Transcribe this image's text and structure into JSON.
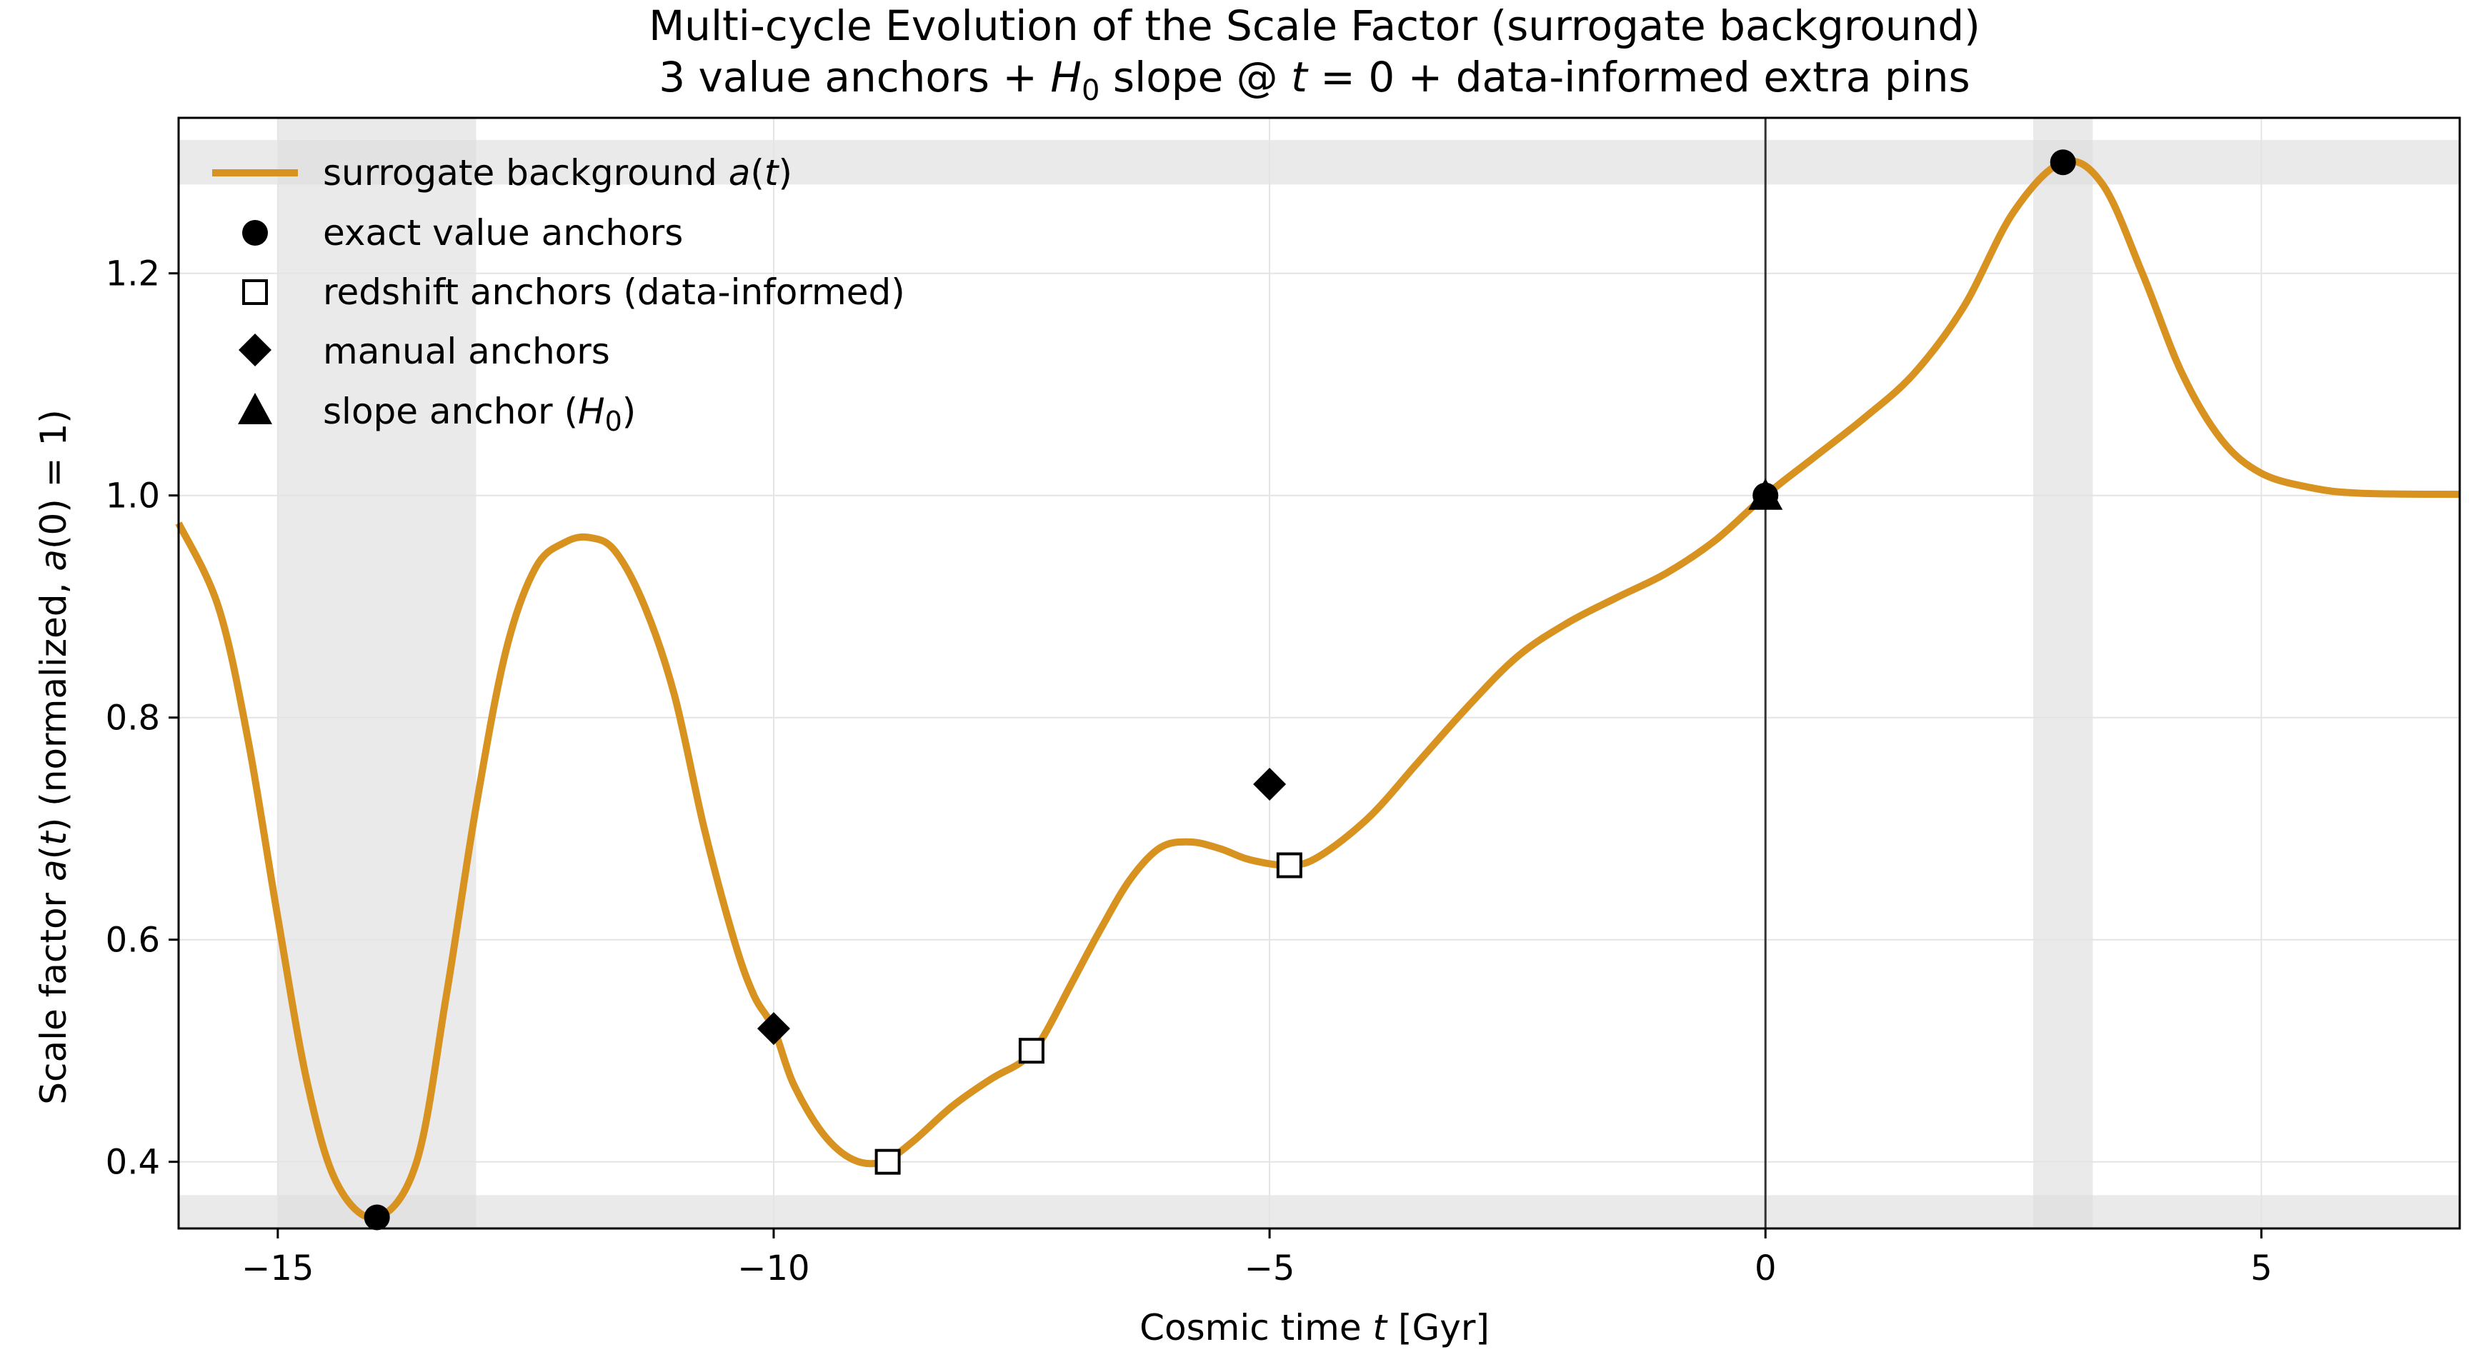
{
  "chart_data": {
    "type": "line",
    "title": "Multi-cycle Evolution of the Scale Factor (surrogate background)",
    "subtitle_parts": [
      "3 value anchors + ",
      "H",
      "0",
      " slope @ ",
      "t",
      " = 0 + data-informed extra pins"
    ],
    "xlabel_parts": [
      "Cosmic time  ",
      "t",
      "  [Gyr]"
    ],
    "ylabel_parts": [
      "Scale factor  ",
      "a",
      "(",
      "t",
      ")  (normalized, ",
      "a",
      "(0) = 1)"
    ],
    "xlim": [
      -16,
      7
    ],
    "ylim": [
      0.34,
      1.34
    ],
    "xticks": [
      -15,
      -10,
      -5,
      0,
      5
    ],
    "xtick_labels": [
      "−15",
      "−10",
      "−5",
      "0",
      "5"
    ],
    "yticks": [
      0.4,
      0.6,
      0.8,
      1.0,
      1.2
    ],
    "ytick_labels": [
      "0.4",
      "0.6",
      "0.8",
      "1.0",
      "1.2"
    ],
    "grid": true,
    "legend_position": "top-left",
    "colors": {
      "curve": "#d89220",
      "grid": "#e4e4e4",
      "band": "#dcdcdc",
      "marker": "#000000",
      "marker_hollow_fill": "#ffffff",
      "vline": "#333333"
    },
    "series": [
      {
        "name_parts": [
          "surrogate background ",
          "a",
          "(",
          "t",
          ")"
        ],
        "style": "line",
        "points": [
          [
            -16.0,
            0.975
          ],
          [
            -15.6,
            0.9
          ],
          [
            -15.3,
            0.78
          ],
          [
            -15.0,
            0.62
          ],
          [
            -14.7,
            0.47
          ],
          [
            -14.4,
            0.38
          ],
          [
            -14.0,
            0.35
          ],
          [
            -13.6,
            0.4
          ],
          [
            -13.3,
            0.55
          ],
          [
            -13.0,
            0.72
          ],
          [
            -12.7,
            0.86
          ],
          [
            -12.4,
            0.935
          ],
          [
            -12.1,
            0.958
          ],
          [
            -11.85,
            0.962
          ],
          [
            -11.6,
            0.95
          ],
          [
            -11.3,
            0.9
          ],
          [
            -11.0,
            0.82
          ],
          [
            -10.7,
            0.7
          ],
          [
            -10.4,
            0.6
          ],
          [
            -10.2,
            0.55
          ],
          [
            -10.0,
            0.52
          ],
          [
            -9.8,
            0.47
          ],
          [
            -9.5,
            0.425
          ],
          [
            -9.2,
            0.402
          ],
          [
            -8.9,
            0.4
          ],
          [
            -8.6,
            0.418
          ],
          [
            -8.2,
            0.45
          ],
          [
            -7.8,
            0.475
          ],
          [
            -7.5,
            0.49
          ],
          [
            -7.3,
            0.51
          ],
          [
            -7.0,
            0.56
          ],
          [
            -6.7,
            0.61
          ],
          [
            -6.4,
            0.655
          ],
          [
            -6.1,
            0.683
          ],
          [
            -5.8,
            0.688
          ],
          [
            -5.5,
            0.682
          ],
          [
            -5.2,
            0.672
          ],
          [
            -4.8,
            0.667
          ],
          [
            -4.5,
            0.675
          ],
          [
            -4.0,
            0.71
          ],
          [
            -3.5,
            0.76
          ],
          [
            -3.0,
            0.81
          ],
          [
            -2.5,
            0.855
          ],
          [
            -2.0,
            0.885
          ],
          [
            -1.5,
            0.908
          ],
          [
            -1.0,
            0.93
          ],
          [
            -0.5,
            0.96
          ],
          [
            0.0,
            1.0
          ],
          [
            0.5,
            1.035
          ],
          [
            1.0,
            1.07
          ],
          [
            1.5,
            1.11
          ],
          [
            2.0,
            1.17
          ],
          [
            2.5,
            1.255
          ],
          [
            3.0,
            1.3
          ],
          [
            3.4,
            1.28
          ],
          [
            3.8,
            1.2
          ],
          [
            4.2,
            1.11
          ],
          [
            4.6,
            1.05
          ],
          [
            5.0,
            1.02
          ],
          [
            5.5,
            1.007
          ],
          [
            6.0,
            1.002
          ],
          [
            7.0,
            1.001
          ]
        ]
      },
      {
        "name": "exact value anchors",
        "style": "marker-circle",
        "points": [
          [
            -14.0,
            0.35
          ],
          [
            0.0,
            1.0
          ],
          [
            3.0,
            1.3
          ]
        ]
      },
      {
        "name": "redshift anchors (data-informed)",
        "style": "marker-square",
        "points": [
          [
            -8.85,
            0.4
          ],
          [
            -7.4,
            0.5
          ],
          [
            -4.8,
            0.667
          ]
        ]
      },
      {
        "name": "manual anchors",
        "style": "marker-diamond",
        "points": [
          [
            -10.0,
            0.52
          ],
          [
            -5.0,
            0.74
          ]
        ]
      },
      {
        "name_parts": [
          "slope anchor (",
          "H",
          "0",
          ")"
        ],
        "style": "marker-triangle",
        "points": [
          [
            0.0,
            1.0
          ]
        ]
      }
    ],
    "vertical_bands": [
      [
        -15.0,
        -13.0
      ],
      [
        2.7,
        3.3
      ]
    ],
    "horizontal_bands": [
      [
        1.28,
        1.32
      ],
      [
        0.34,
        0.37
      ]
    ],
    "vertical_lines": [
      0.0
    ]
  }
}
